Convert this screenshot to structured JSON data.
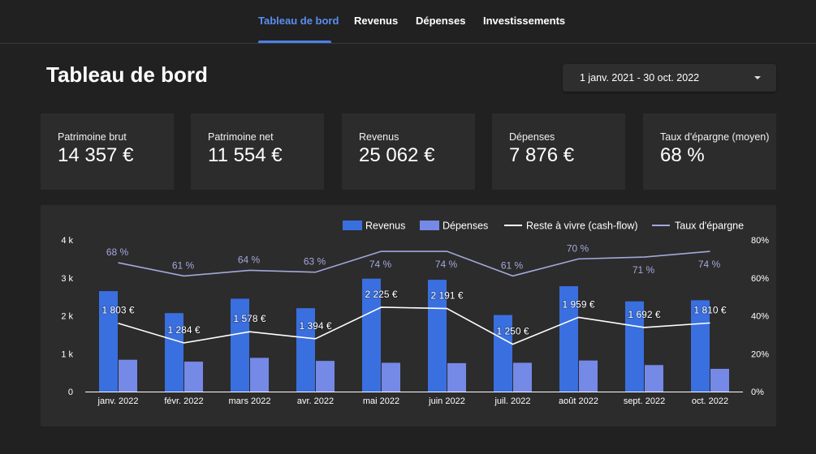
{
  "nav": {
    "tabs": [
      {
        "label": "Tableau de bord",
        "active": true
      },
      {
        "label": "Revenus",
        "active": false
      },
      {
        "label": "Dépenses",
        "active": false
      },
      {
        "label": "Investissements",
        "active": false
      }
    ]
  },
  "page": {
    "title": "Tableau de bord",
    "date_range": "1 janv. 2021 - 30 oct. 2022"
  },
  "kpis": [
    {
      "label": "Patrimoine brut",
      "value": "14 357 €"
    },
    {
      "label": "Patrimoine net",
      "value": "11 554 €"
    },
    {
      "label": "Revenus",
      "value": "25 062 €"
    },
    {
      "label": "Dépenses",
      "value": "7 876 €"
    },
    {
      "label": "Taux d'épargne (moyen)",
      "value": "68 %"
    }
  ],
  "colors": {
    "accent": "#4a80e8",
    "revenus": "#3a6fe0",
    "depenses": "#7589e6",
    "cashflow": "#ffffff",
    "epargne": "#a3a8dc",
    "background": "#212121",
    "card": "#2c2c2c"
  },
  "chart_data": {
    "type": "bar",
    "categories": [
      "janv. 2022",
      "févr. 2022",
      "mars 2022",
      "avr. 2022",
      "mai 2022",
      "juin 2022",
      "juil. 2022",
      "août 2022",
      "sept. 2022",
      "oct. 2022"
    ],
    "series": [
      {
        "name": "Revenus",
        "type": "bar",
        "axis": "left",
        "values": [
          2650,
          2070,
          2450,
          2200,
          2980,
          2950,
          2020,
          2780,
          2380,
          2410
        ]
      },
      {
        "name": "Dépenses",
        "type": "bar",
        "axis": "left",
        "values": [
          840,
          790,
          890,
          810,
          760,
          750,
          760,
          820,
          700,
          600
        ]
      },
      {
        "name": "Reste à vivre (cash-flow)",
        "type": "line",
        "axis": "left",
        "values": [
          1803,
          1284,
          1578,
          1394,
          2225,
          2191,
          1250,
          1959,
          1692,
          1810
        ],
        "labels": [
          "1 803 €",
          "1 284 €",
          "1 578 €",
          "1 394 €",
          "2 225 €",
          "2 191 €",
          "1 250 €",
          "1 959 €",
          "1 692 €",
          "1 810 €"
        ]
      },
      {
        "name": "Taux d'épargne",
        "type": "line",
        "axis": "right",
        "values": [
          68,
          61,
          64,
          63,
          74,
          74,
          61,
          70,
          71,
          74
        ],
        "labels": [
          "68 %",
          "61 %",
          "64 %",
          "63 %",
          "74 %",
          "74 %",
          "61 %",
          "70 %",
          "71 %",
          "74 %"
        ],
        "label_position": [
          "above",
          "above",
          "above",
          "above",
          "below",
          "below",
          "above",
          "above",
          "below",
          "below"
        ]
      }
    ],
    "yleft": {
      "min": 0,
      "max": 4000,
      "ticks": [
        0,
        1000,
        2000,
        3000,
        4000
      ],
      "tick_labels": [
        "0",
        "1 k",
        "2 k",
        "3 k",
        "4 k"
      ]
    },
    "yright": {
      "min": 0,
      "max": 80,
      "ticks": [
        0,
        20,
        40,
        60,
        80
      ],
      "tick_labels": [
        "0%",
        "20%",
        "40%",
        "60%",
        "80%"
      ]
    },
    "legend_position": "top-right",
    "grid": false
  }
}
